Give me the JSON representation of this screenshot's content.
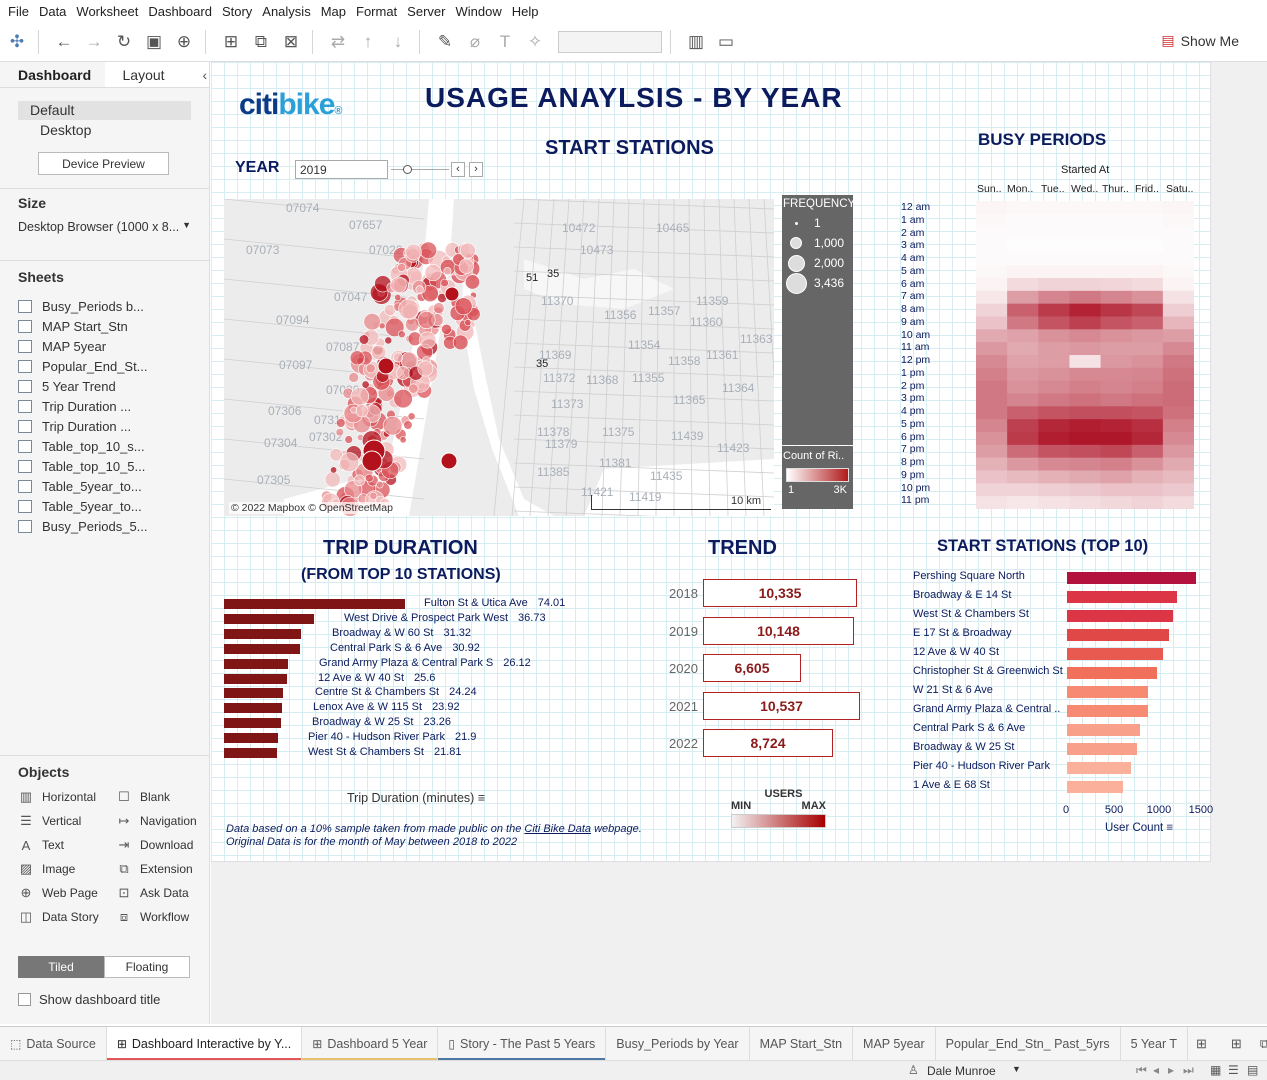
{
  "menu": [
    "File",
    "Data",
    "Worksheet",
    "Dashboard",
    "Story",
    "Analysis",
    "Map",
    "Format",
    "Server",
    "Window",
    "Help"
  ],
  "toolbar": {
    "show_me": "Show Me"
  },
  "left_panel": {
    "tab_dashboard": "Dashboard",
    "tab_layout": "Layout",
    "device_default": "Default",
    "device_desktop": "Desktop",
    "device_preview": "Device Preview",
    "size_heading": "Size",
    "size_value": "Desktop Browser (1000 x 8...",
    "sheets_heading": "Sheets",
    "sheets": [
      "Busy_Periods b...",
      "MAP Start_Stn",
      "MAP 5year",
      "Popular_End_St...",
      "5 Year Trend",
      "Trip Duration ...",
      "Trip Duration ...",
      "Table_top_10_s...",
      "Table_top_10_5...",
      "Table_5year_to...",
      "Table_5year_to...",
      "Busy_Periods_5..."
    ],
    "objects_heading": "Objects",
    "objects": [
      "Horizontal",
      "Blank",
      "Vertical",
      "Navigation",
      "Text",
      "Download",
      "Image",
      "Extension",
      "Web Page",
      "Ask Data",
      "Data Story",
      "Workflow"
    ],
    "tiled": "Tiled",
    "floating": "Floating",
    "show_title": "Show dashboard title"
  },
  "dashboard": {
    "logo_citi": "citi",
    "logo_bike": "bike",
    "logo_mark": "®",
    "title": "USAGE ANAYLSIS - BY YEAR",
    "start_stations": "START STATIONS",
    "year_label": "YEAR",
    "year_value": "2019",
    "busy_periods": "BUSY PERIODS",
    "started_at": "Started At",
    "days": [
      "Sun..",
      "Mon..",
      "Tue..",
      "Wed..",
      "Thur..",
      "Frid..",
      "Satu.."
    ],
    "hours": [
      "12 am",
      "1 am",
      "2 am",
      "3 am",
      "4 am",
      "5 am",
      "6 am",
      "7 am",
      "8 am",
      "9 am",
      "10 am",
      "11 am",
      "12 pm",
      "1 pm",
      "2 pm",
      "3 pm",
      "4 pm",
      "5 pm",
      "6 pm",
      "7 pm",
      "8 pm",
      "9 pm",
      "10 pm",
      "11 pm"
    ],
    "map_attribution": "© 2022 Mapbox © OpenStreetMap",
    "map_scale": "10 km",
    "map_labels": [
      "07074",
      "07657",
      "10472",
      "10465",
      "07073",
      "07022",
      "10473",
      "07047",
      "51",
      "35",
      "11370",
      "11359",
      "07094",
      "11356",
      "11357",
      "11360",
      "07087",
      "11354",
      "11363",
      "07097",
      "35",
      "11369",
      "11358",
      "11361",
      "11372",
      "11368",
      "11355",
      "07030",
      "11364",
      "07306",
      "11373",
      "11365",
      "07310",
      "11378",
      "11379",
      "11375",
      "11439",
      "07304",
      "07302",
      "11423",
      "11385",
      "11381",
      "11435",
      "07305",
      "11421",
      "11419"
    ],
    "frequency_legend": {
      "title": "FREQUENCY",
      "items": [
        "1",
        "1,000",
        "2,000",
        "3,436"
      ]
    },
    "count_legend": {
      "title": "Count of Ri..",
      "min": "1",
      "max": "3K"
    },
    "trip_title1": "TRIP DURATION",
    "trip_title2": "(FROM TOP 10 STATIONS)",
    "trip_axis": "Trip Duration  (minutes)",
    "trend_title": "TREND",
    "trend": [
      {
        "year": "2018",
        "value": "10,335",
        "n": 10335
      },
      {
        "year": "2019",
        "value": "10,148",
        "n": 10148
      },
      {
        "year": "2020",
        "value": "6,605",
        "n": 6605
      },
      {
        "year": "2021",
        "value": "10,537",
        "n": 10537
      },
      {
        "year": "2022",
        "value": "8,724",
        "n": 8724
      }
    ],
    "users_legend": {
      "title": "USERS",
      "min": "MIN",
      "max": "MAX"
    },
    "top10_title": "START STATIONS (TOP 10)",
    "top10_axis_label": "User Count",
    "top10_ticks": [
      "0",
      "500",
      "1000",
      "1500"
    ],
    "footnote1_pre": "Data based on a 10% sample taken from made public on the ",
    "footnote1_link": "Citi Bike Data",
    "footnote1_post": " webpage.",
    "footnote2": "Original Data is for the month of May between 2018 to 2022"
  },
  "bottom_tabs": [
    "Data Source",
    "Dashboard Interactive by Y...",
    "Dashboard 5 Year",
    "Story - The Past 5 Years",
    "Busy_Periods by Year",
    "MAP Start_Stn",
    "MAP 5year",
    "Popular_End_Stn_ Past_5yrs",
    "5 Year T"
  ],
  "status": {
    "user": "Dale Munroe"
  },
  "chart_data": [
    {
      "type": "bar",
      "title": "TRIP DURATION",
      "subtitle": "(FROM TOP 10 STATIONS)",
      "xlabel": "Trip Duration  (minutes)",
      "categories": [
        "Fulton St & Utica Ave",
        "West Drive & Prospect Park West",
        "Broadway & W 60 St",
        "Central Park S & 6 Ave",
        "Grand Army Plaza & Central Park S",
        "12 Ave & W 40 St",
        "Centre St & Chambers St",
        "Lenox Ave & W 115 St",
        "Broadway & W 25 St",
        "Pier 40 - Hudson River Park",
        "West St & Chambers St"
      ],
      "values": [
        74.01,
        36.73,
        31.32,
        30.92,
        26.12,
        25.6,
        24.24,
        23.92,
        23.26,
        21.9,
        21.81
      ]
    },
    {
      "type": "bar",
      "title": "START STATIONS (TOP 10)",
      "xlabel": "User Count",
      "xlim": [
        0,
        1600
      ],
      "categories": [
        "Pershing Square North",
        "Broadway & E 14 St",
        "West St & Chambers St",
        "E 17 St & Broadway",
        "12 Ave & W 40 St",
        "Christopher St & Greenwich St",
        "W 21 St & 6 Ave",
        "Grand Army Plaza & Central ..",
        "Central Park S & 6 Ave",
        "Broadway & W 25 St",
        "Pier 40 - Hudson River Park",
        "1 Ave & E 68 St"
      ],
      "values": [
        1540,
        1310,
        1260,
        1220,
        1150,
        1070,
        970,
        970,
        870,
        830,
        770,
        670
      ],
      "colors": [
        "#b3123e",
        "#dc3545",
        "#dc3545",
        "#e04848",
        "#e85a4f",
        "#f0705c",
        "#f68a72",
        "#f68a72",
        "#f9a08a",
        "#f9a08a",
        "#fbb09c",
        "#fbb09c"
      ]
    },
    {
      "type": "heatmap",
      "title": "BUSY PERIODS",
      "xlabel": "Started At",
      "x": [
        "Sun..",
        "Mon..",
        "Tue..",
        "Wed..",
        "Thur..",
        "Frid..",
        "Satu.."
      ],
      "y": [
        "12 am",
        "1 am",
        "2 am",
        "3 am",
        "4 am",
        "5 am",
        "6 am",
        "7 am",
        "8 am",
        "9 am",
        "10 am",
        "11 am",
        "12 pm",
        "1 pm",
        "2 pm",
        "3 pm",
        "4 pm",
        "5 pm",
        "6 pm",
        "7 pm",
        "8 pm",
        "9 pm",
        "10 pm",
        "11 pm"
      ],
      "values": [
        [
          0.04,
          0.03,
          0.03,
          0.03,
          0.03,
          0.03,
          0.04
        ],
        [
          0.03,
          0.02,
          0.02,
          0.02,
          0.02,
          0.02,
          0.03
        ],
        [
          0.02,
          0.02,
          0.02,
          0.02,
          0.02,
          0.02,
          0.02
        ],
        [
          0.02,
          0.01,
          0.01,
          0.01,
          0.01,
          0.01,
          0.02
        ],
        [
          0.02,
          0.02,
          0.02,
          0.02,
          0.02,
          0.02,
          0.02
        ],
        [
          0.03,
          0.05,
          0.05,
          0.05,
          0.05,
          0.05,
          0.03
        ],
        [
          0.05,
          0.15,
          0.18,
          0.18,
          0.17,
          0.15,
          0.05
        ],
        [
          0.1,
          0.4,
          0.5,
          0.55,
          0.5,
          0.45,
          0.12
        ],
        [
          0.18,
          0.65,
          0.8,
          0.9,
          0.82,
          0.75,
          0.2
        ],
        [
          0.25,
          0.55,
          0.7,
          0.78,
          0.7,
          0.65,
          0.3
        ],
        [
          0.35,
          0.38,
          0.45,
          0.48,
          0.45,
          0.42,
          0.4
        ],
        [
          0.42,
          0.35,
          0.4,
          0.42,
          0.4,
          0.4,
          0.48
        ],
        [
          0.48,
          0.38,
          0.4,
          0.12,
          0.42,
          0.45,
          0.55
        ],
        [
          0.52,
          0.42,
          0.45,
          0.48,
          0.48,
          0.5,
          0.58
        ],
        [
          0.55,
          0.45,
          0.48,
          0.52,
          0.5,
          0.52,
          0.6
        ],
        [
          0.55,
          0.5,
          0.55,
          0.58,
          0.55,
          0.58,
          0.6
        ],
        [
          0.55,
          0.65,
          0.7,
          0.72,
          0.72,
          0.7,
          0.58
        ],
        [
          0.5,
          0.78,
          0.88,
          0.92,
          0.9,
          0.85,
          0.52
        ],
        [
          0.45,
          0.8,
          0.92,
          0.95,
          0.95,
          0.88,
          0.48
        ],
        [
          0.4,
          0.6,
          0.7,
          0.72,
          0.75,
          0.65,
          0.42
        ],
        [
          0.32,
          0.42,
          0.48,
          0.5,
          0.52,
          0.45,
          0.35
        ],
        [
          0.25,
          0.28,
          0.32,
          0.35,
          0.38,
          0.32,
          0.28
        ],
        [
          0.18,
          0.18,
          0.2,
          0.22,
          0.25,
          0.25,
          0.22
        ],
        [
          0.12,
          0.1,
          0.12,
          0.14,
          0.16,
          0.18,
          0.15
        ]
      ]
    },
    {
      "type": "table",
      "title": "TREND",
      "categories": [
        "2018",
        "2019",
        "2020",
        "2021",
        "2022"
      ],
      "values": [
        10335,
        10148,
        6605,
        10537,
        8724
      ]
    }
  ]
}
